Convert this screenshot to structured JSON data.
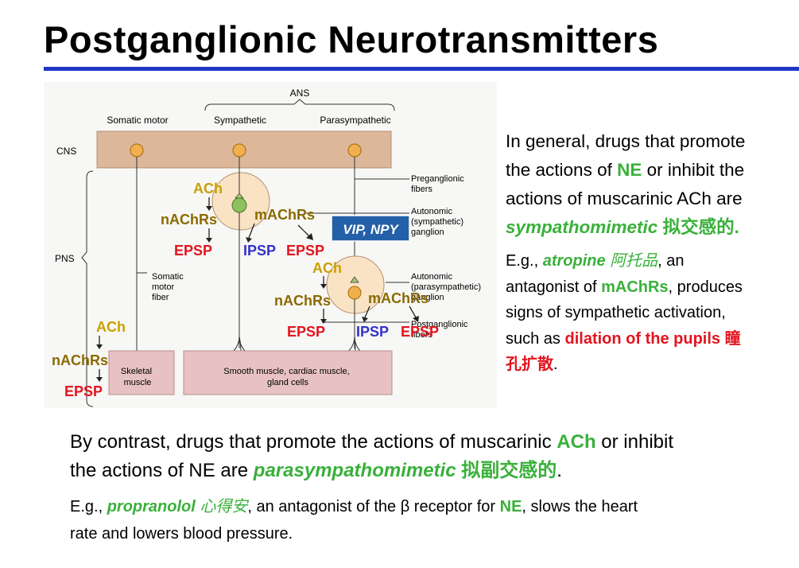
{
  "title": "Postganglionic Neurotransmitters",
  "diagram": {
    "ans": "ANS",
    "somatic_motor": "Somatic motor",
    "sympathetic": "Sympathetic",
    "parasympathetic": "Parasympathetic",
    "cns": "CNS",
    "pns": "PNS",
    "preganglionic_fibers": [
      "Preganglionic",
      "fibers"
    ],
    "autonomic_sym_ganglion": [
      "Autonomic",
      "(sympathetic)",
      "ganglion"
    ],
    "autonomic_para_ganglion": [
      "Autonomic",
      "(parasympathetic)",
      "ganglion"
    ],
    "postganglionic_fibers": [
      "Postganglionic",
      "fibers"
    ],
    "somatic_motor_fiber": [
      "Somatic",
      "motor",
      "fiber"
    ],
    "skeletal_muscle": [
      "Skeletal",
      "muscle"
    ],
    "smooth_muscle": [
      "Smooth muscle, cardiac muscle,",
      "gland cells"
    ],
    "vip_npy": "VIP, NPY",
    "ach": "ACh",
    "nachrs": "nAChRs",
    "machrs": "mAChRs",
    "epsp": "EPSP",
    "ipsp": "IPSP",
    "colors": {
      "ach": "#c9a000",
      "nachrs": "#8b6a00",
      "epsp": "#e3141e",
      "ipsp": "#3333cc",
      "vip_box": "#2460a7",
      "cns_box": "#dcb79a",
      "muscle_box": "#e8c2c2"
    }
  },
  "para1": {
    "l1": "In general, drugs that promote",
    "l2a": "the actions of ",
    "l2b": "NE",
    "l2c": " or inhibit the",
    "l3": "actions of muscarinic ACh are",
    "l4a": "sympathomimetic",
    "l4b": " 拟交感的."
  },
  "para2": {
    "l1a": "E.g., ",
    "l1b": "atropine",
    "l1c": "阿托品",
    "l1d": ", an",
    "l2a": "antagonist of ",
    "l2b": "mAChRs",
    "l2c": ", produces",
    "l3": "signs of sympathetic activation,",
    "l4a": "such as ",
    "l4b": "dilation of the pupils 瞳",
    "l5a": "孔扩散",
    "l5b": "."
  },
  "para3": {
    "l1a": "By contrast, drugs that promote the actions of muscarinic ",
    "l1b": "ACh",
    "l1c": " or inhibit",
    "l2a": "the actions of NE are ",
    "l2b": "parasympathomimetic",
    "l2c": " 拟副交感的",
    "l2d": "."
  },
  "para4": {
    "l1a": "E.g., ",
    "l1b": "propranolol",
    "l1c": "心得安",
    "l1d": ", an antagonist of the β receptor for ",
    "l1e": "NE",
    "l1f": ", slows the heart",
    "l2": "rate and lowers blood pressure."
  }
}
